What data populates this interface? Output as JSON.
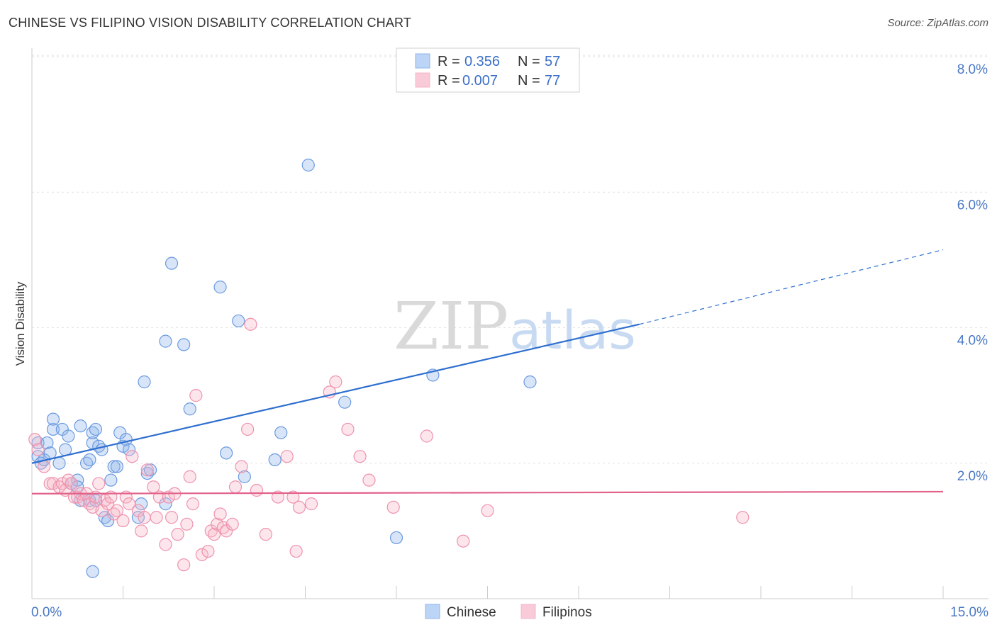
{
  "chart_data": {
    "type": "scatter",
    "title": "CHINESE VS FILIPINO VISION DISABILITY CORRELATION CHART",
    "source": "Source: ZipAtlas.com",
    "ylabel": "Vision Disability",
    "xlabel": "",
    "xlim": [
      0,
      15
    ],
    "ylim": [
      0,
      8
    ],
    "x_tick_labels": [
      "0.0%",
      "15.0%"
    ],
    "y_ticks": [
      2,
      4,
      6,
      8
    ],
    "y_tick_labels": [
      "2.0%",
      "4.0%",
      "6.0%",
      "8.0%"
    ],
    "watermark": {
      "zip": "ZIP",
      "atlas": "atlas"
    },
    "legend_top": [
      {
        "r_label": "R = ",
        "r_value": "0.356",
        "n_label": "N = ",
        "n_value": "57"
      },
      {
        "r_label": "R = ",
        "r_value": "0.007",
        "n_label": "N = ",
        "n_value": "77"
      }
    ],
    "series": [
      {
        "name": "Chinese",
        "color": "#8fb4ea",
        "stroke": "#6b9ae0",
        "line_color": "#2e6fcf",
        "trend": {
          "x0": 0,
          "y0": 2.0,
          "x1": 10,
          "y1": 4.05,
          "dash_x1": 15,
          "dash_y1": 5.15
        },
        "points": [
          [
            0.1,
            2.3
          ],
          [
            0.1,
            2.1
          ],
          [
            0.15,
            2.0
          ],
          [
            0.2,
            2.05
          ],
          [
            0.25,
            2.3
          ],
          [
            0.3,
            2.15
          ],
          [
            0.35,
            2.5
          ],
          [
            0.35,
            2.65
          ],
          [
            0.45,
            2.0
          ],
          [
            0.5,
            2.5
          ],
          [
            0.55,
            2.2
          ],
          [
            0.6,
            2.4
          ],
          [
            0.65,
            1.7
          ],
          [
            0.75,
            1.75
          ],
          [
            0.75,
            1.65
          ],
          [
            0.8,
            2.55
          ],
          [
            0.8,
            1.45
          ],
          [
            0.9,
            2.0
          ],
          [
            0.95,
            2.05
          ],
          [
            0.95,
            1.45
          ],
          [
            1.0,
            2.3
          ],
          [
            1.0,
            2.45
          ],
          [
            1.05,
            1.45
          ],
          [
            1.0,
            0.4
          ],
          [
            1.05,
            2.5
          ],
          [
            1.1,
            2.25
          ],
          [
            1.15,
            2.2
          ],
          [
            1.2,
            1.2
          ],
          [
            1.25,
            1.15
          ],
          [
            1.3,
            1.75
          ],
          [
            1.35,
            1.95
          ],
          [
            1.4,
            1.95
          ],
          [
            1.45,
            2.45
          ],
          [
            1.5,
            2.25
          ],
          [
            1.55,
            2.35
          ],
          [
            1.6,
            2.2
          ],
          [
            1.75,
            1.2
          ],
          [
            1.8,
            1.4
          ],
          [
            1.9,
            1.85
          ],
          [
            1.85,
            3.2
          ],
          [
            1.95,
            1.9
          ],
          [
            2.2,
            1.4
          ],
          [
            2.2,
            3.8
          ],
          [
            2.3,
            4.95
          ],
          [
            2.5,
            3.75
          ],
          [
            2.6,
            2.8
          ],
          [
            3.1,
            4.6
          ],
          [
            3.2,
            2.15
          ],
          [
            3.4,
            4.1
          ],
          [
            3.5,
            1.8
          ],
          [
            4.0,
            2.05
          ],
          [
            4.1,
            2.45
          ],
          [
            4.55,
            6.4
          ],
          [
            5.15,
            2.9
          ],
          [
            6.6,
            3.3
          ],
          [
            8.2,
            3.2
          ],
          [
            6.0,
            0.9
          ]
        ]
      },
      {
        "name": "Filipinos",
        "color": "#f5b7c9",
        "stroke": "#ef92ad",
        "line_color": "#e2628a",
        "trend": {
          "x0": 0,
          "y0": 1.55,
          "x1": 15,
          "y1": 1.58
        },
        "points": [
          [
            0.05,
            2.35
          ],
          [
            0.1,
            2.2
          ],
          [
            0.2,
            1.95
          ],
          [
            0.3,
            1.7
          ],
          [
            0.35,
            1.7
          ],
          [
            0.45,
            1.65
          ],
          [
            0.5,
            1.7
          ],
          [
            0.55,
            1.6
          ],
          [
            0.6,
            1.75
          ],
          [
            0.65,
            1.7
          ],
          [
            0.7,
            1.5
          ],
          [
            0.75,
            1.5
          ],
          [
            0.8,
            1.55
          ],
          [
            0.85,
            1.45
          ],
          [
            0.9,
            1.55
          ],
          [
            0.95,
            1.4
          ],
          [
            1.0,
            1.35
          ],
          [
            1.05,
            1.5
          ],
          [
            1.1,
            1.7
          ],
          [
            1.15,
            1.3
          ],
          [
            1.2,
            1.45
          ],
          [
            1.25,
            1.4
          ],
          [
            1.3,
            1.5
          ],
          [
            1.35,
            1.25
          ],
          [
            1.4,
            1.3
          ],
          [
            1.5,
            1.15
          ],
          [
            1.55,
            1.5
          ],
          [
            1.6,
            1.4
          ],
          [
            1.65,
            2.1
          ],
          [
            1.75,
            1.3
          ],
          [
            1.8,
            1.0
          ],
          [
            1.85,
            1.2
          ],
          [
            1.9,
            1.9
          ],
          [
            2.0,
            1.65
          ],
          [
            2.05,
            1.2
          ],
          [
            2.1,
            1.5
          ],
          [
            2.2,
            0.8
          ],
          [
            2.25,
            1.5
          ],
          [
            2.3,
            1.2
          ],
          [
            2.35,
            1.55
          ],
          [
            2.4,
            0.95
          ],
          [
            2.5,
            0.5
          ],
          [
            2.55,
            1.1
          ],
          [
            2.6,
            1.8
          ],
          [
            2.65,
            1.4
          ],
          [
            2.7,
            3.0
          ],
          [
            2.8,
            0.65
          ],
          [
            2.9,
            0.7
          ],
          [
            2.95,
            1.0
          ],
          [
            3.0,
            0.95
          ],
          [
            3.05,
            1.1
          ],
          [
            3.1,
            1.25
          ],
          [
            3.15,
            1.05
          ],
          [
            3.2,
            1.0
          ],
          [
            3.3,
            1.1
          ],
          [
            3.35,
            1.65
          ],
          [
            3.45,
            1.95
          ],
          [
            3.55,
            2.5
          ],
          [
            3.6,
            4.05
          ],
          [
            3.7,
            1.6
          ],
          [
            3.85,
            0.95
          ],
          [
            4.05,
            1.5
          ],
          [
            4.2,
            2.1
          ],
          [
            4.3,
            1.5
          ],
          [
            4.35,
            0.7
          ],
          [
            4.4,
            1.35
          ],
          [
            4.6,
            1.4
          ],
          [
            4.9,
            3.05
          ],
          [
            5.0,
            3.2
          ],
          [
            5.2,
            2.5
          ],
          [
            5.4,
            2.1
          ],
          [
            5.55,
            1.75
          ],
          [
            5.95,
            1.35
          ],
          [
            6.5,
            2.4
          ],
          [
            7.1,
            0.85
          ],
          [
            7.5,
            1.3
          ],
          [
            11.7,
            1.2
          ]
        ]
      }
    ]
  }
}
